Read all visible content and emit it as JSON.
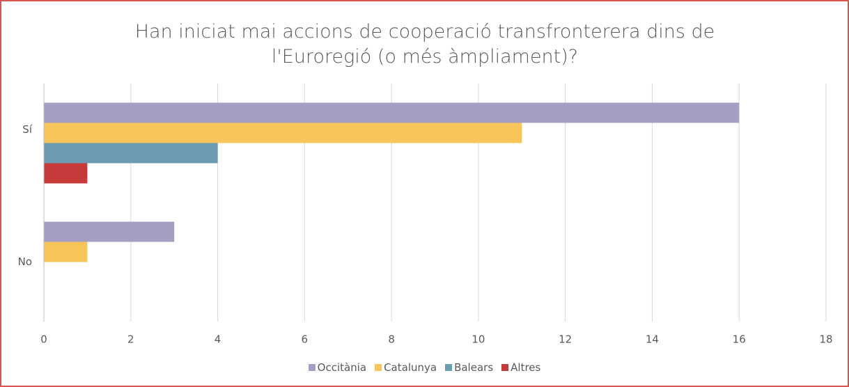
{
  "chart_data": {
    "type": "hbar",
    "title": "Han iniciat mai accions de cooperació transfronterera dins de l'Euroregió (o més àmpliament)?",
    "categories": [
      "Sí",
      "No"
    ],
    "series": [
      {
        "name": "Occitània",
        "color": "#a59dc3",
        "values": [
          16,
          3
        ]
      },
      {
        "name": "Catalunya",
        "color": "#f8c55a",
        "values": [
          11,
          1
        ]
      },
      {
        "name": "Balears",
        "color": "#6b9cb2",
        "values": [
          4,
          0
        ]
      },
      {
        "name": "Altres",
        "color": "#c8393a",
        "values": [
          1,
          0
        ]
      }
    ],
    "xlim": [
      0,
      18
    ],
    "xticks": [
      0,
      2,
      4,
      6,
      8,
      10,
      12,
      14,
      16,
      18
    ],
    "grid": true,
    "legend": "bottom"
  }
}
